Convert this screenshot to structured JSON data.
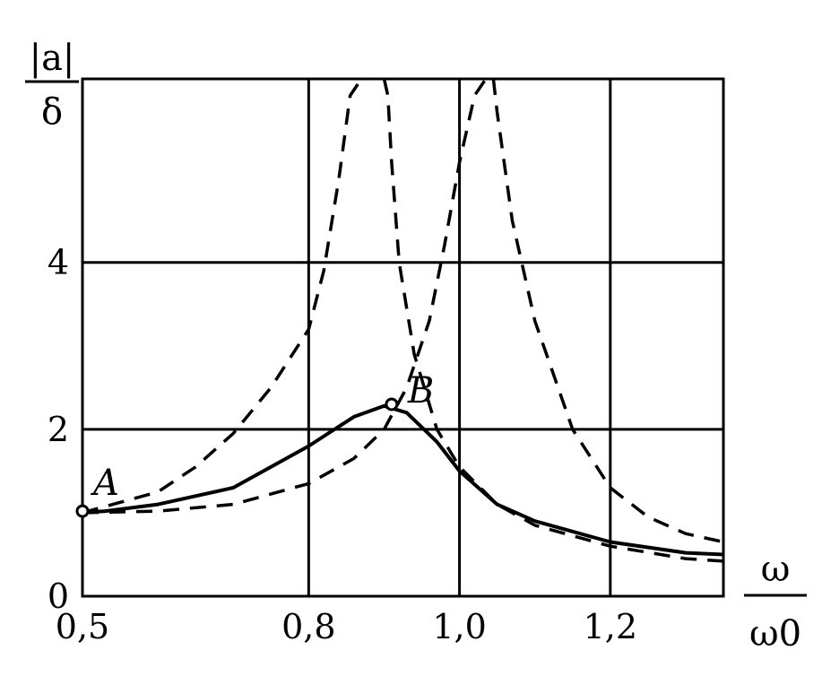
{
  "chart_data": {
    "type": "line",
    "ylabel": {
      "numerator": "|a|",
      "denominator": "δ"
    },
    "xlabel": {
      "numerator": "ω",
      "denominator": "ω0"
    },
    "xlim": [
      0.5,
      1.35
    ],
    "ylim": [
      0,
      6.2
    ],
    "grid": true,
    "x_ticks": [
      {
        "value": 0.5,
        "label": "0,5"
      },
      {
        "value": 0.8,
        "label": "0,8"
      },
      {
        "value": 1.0,
        "label": "1,0"
      },
      {
        "value": 1.2,
        "label": "1,2"
      }
    ],
    "y_ticks": [
      {
        "value": 0,
        "label": "0"
      },
      {
        "value": 2,
        "label": "2"
      },
      {
        "value": 4,
        "label": "4"
      }
    ],
    "x_gridlines": [
      0.8,
      1.0,
      1.2
    ],
    "y_gridlines": [
      2,
      4
    ],
    "series": [
      {
        "style": "solid",
        "x": [
          0.5,
          0.53,
          0.6,
          0.7,
          0.8,
          0.86,
          0.9,
          0.93,
          0.97,
          1.0,
          1.05,
          1.1,
          1.2,
          1.3,
          1.35
        ],
        "y": [
          1.0,
          1.02,
          1.1,
          1.3,
          1.8,
          2.15,
          2.28,
          2.2,
          1.85,
          1.5,
          1.1,
          0.9,
          0.65,
          0.52,
          0.5
        ]
      },
      {
        "style": "dashed",
        "x": [
          0.5,
          0.6,
          0.65,
          0.7,
          0.75,
          0.8,
          0.82,
          0.84,
          0.855,
          0.87
        ],
        "y": [
          1.0,
          1.25,
          1.55,
          1.95,
          2.5,
          3.2,
          3.9,
          5.0,
          6.0,
          6.2
        ]
      },
      {
        "style": "dashed",
        "x": [
          0.9,
          0.905,
          0.91,
          0.92,
          0.94,
          0.97,
          1.0,
          1.05,
          1.1,
          1.2,
          1.3,
          1.35
        ],
        "y": [
          6.2,
          6.0,
          5.2,
          4.0,
          2.9,
          2.0,
          1.55,
          1.1,
          0.85,
          0.6,
          0.45,
          0.42
        ]
      },
      {
        "style": "dashed",
        "x": [
          0.5,
          0.6,
          0.7,
          0.8,
          0.86,
          0.9,
          0.93,
          0.96,
          0.98,
          1.0,
          1.02,
          1.035
        ],
        "y": [
          1.0,
          1.02,
          1.1,
          1.35,
          1.65,
          2.0,
          2.5,
          3.3,
          4.2,
          5.2,
          6.0,
          6.2
        ]
      },
      {
        "style": "dashed",
        "x": [
          1.045,
          1.05,
          1.07,
          1.1,
          1.15,
          1.2,
          1.25,
          1.3,
          1.35
        ],
        "y": [
          6.2,
          5.8,
          4.5,
          3.3,
          2.0,
          1.3,
          0.95,
          0.75,
          0.65
        ]
      }
    ],
    "points": [
      {
        "label": "A",
        "x": 0.5,
        "y": 1.02
      },
      {
        "label": "B",
        "x": 0.91,
        "y": 2.3
      }
    ]
  }
}
